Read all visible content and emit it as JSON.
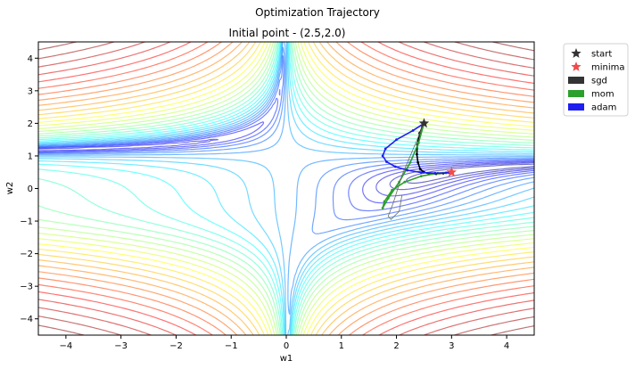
{
  "chart_data": {
    "type": "line",
    "suptitle": "Optimization Trajectory",
    "title": "Initial point - (2.5,2.0)",
    "xlabel": "w1",
    "ylabel": "w2",
    "xlim": [
      -4.5,
      4.5
    ],
    "ylim": [
      -4.5,
      4.5
    ],
    "x_ticks": [
      -4,
      -3,
      -2,
      -1,
      0,
      1,
      2,
      3,
      4
    ],
    "y_ticks": [
      -4,
      -3,
      -2,
      -1,
      0,
      1,
      2,
      3,
      4
    ],
    "grid": false,
    "legend_position": "outside-top-right",
    "legend": [
      {
        "label": "start",
        "marker": "star",
        "color": "#333333"
      },
      {
        "label": "minima",
        "marker": "star",
        "color": "#f04a4a"
      },
      {
        "label": "sgd",
        "marker": "patch",
        "color": "#333333"
      },
      {
        "label": "mom",
        "marker": "patch",
        "color": "#2ca02c"
      },
      {
        "label": "adam",
        "marker": "patch",
        "color": "#1f1ff0"
      }
    ],
    "start": {
      "x": 2.5,
      "y": 2.0
    },
    "minima": {
      "x": 3.0,
      "y": 0.5
    },
    "series": [
      {
        "name": "sgd",
        "color": "#000000",
        "x": [
          2.5,
          2.42,
          2.38,
          2.37,
          2.39,
          2.43,
          2.5,
          2.6,
          2.72,
          2.85,
          2.95
        ],
        "y": [
          2.0,
          1.7,
          1.35,
          1.05,
          0.8,
          0.6,
          0.5,
          0.45,
          0.45,
          0.47,
          0.49
        ]
      },
      {
        "name": "mom",
        "color": "#2ca02c",
        "x": [
          2.5,
          2.4,
          2.25,
          2.05,
          1.85,
          1.75,
          1.78,
          1.92,
          2.15,
          2.45,
          2.75,
          2.95
        ],
        "y": [
          2.0,
          1.4,
          0.8,
          0.2,
          -0.3,
          -0.6,
          -0.4,
          -0.05,
          0.2,
          0.38,
          0.47,
          0.5
        ]
      },
      {
        "name": "adam",
        "color": "#1f1ff0",
        "x": [
          2.5,
          2.3,
          2.0,
          1.8,
          1.75,
          1.82,
          1.98,
          2.2,
          2.45,
          2.7,
          2.9,
          3.0
        ],
        "y": [
          2.0,
          1.78,
          1.5,
          1.22,
          1.0,
          0.82,
          0.67,
          0.56,
          0.49,
          0.47,
          0.48,
          0.5
        ]
      },
      {
        "name": "",
        "color": "#607060",
        "x": [
          2.5,
          2.3,
          2.1,
          1.95,
          1.85,
          1.9,
          2.05,
          2.1
        ],
        "y": [
          2.0,
          1.2,
          0.4,
          -0.4,
          -0.85,
          -0.95,
          -0.7,
          -0.2
        ]
      }
    ],
    "contour_field": "log-scaled loss surface, jet colormap, alpha 0.5"
  }
}
